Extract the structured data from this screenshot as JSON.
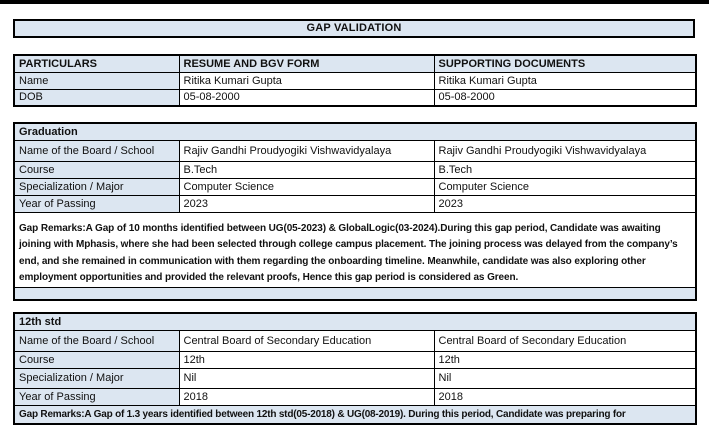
{
  "page": {
    "title": "GAP VALIDATION"
  },
  "colors": {
    "header_fill": "#dce6f1",
    "border": "#000000",
    "top_bar": "#000000"
  },
  "particulars_table": {
    "headers": [
      "PARTICULARS",
      "RESUME AND BGV FORM",
      "SUPPORTING DOCUMENTS"
    ],
    "rows": [
      {
        "label": "Name",
        "resume": "Ritika Kumari Gupta",
        "supporting": "Ritika Kumari Gupta"
      },
      {
        "label": "DOB",
        "resume": "05-08-2000",
        "supporting": "05-08-2000"
      }
    ]
  },
  "graduation": {
    "section_title": "Graduation",
    "rows": [
      {
        "label": "Name of the Board / School",
        "resume": "Rajiv Gandhi Proudyogiki Vishwavidyalaya",
        "supporting": "Rajiv Gandhi Proudyogiki Vishwavidyalaya"
      },
      {
        "label": "Course",
        "resume": "B.Tech",
        "supporting": "B.Tech"
      },
      {
        "label": "Specialization / Major",
        "resume": "Computer Science",
        "supporting": "Computer Science"
      },
      {
        "label": "Year of Passing",
        "resume": "2023",
        "supporting": "2023"
      }
    ],
    "gap_remarks": "Gap Remarks:A Gap of 10 months identified between UG(05-2023) & GlobalLogic(03-2024).During this gap period, Candidate was awaiting joining with Mphasis, where she had been selected through college campus placement. The joining process was delayed from the company’s end, and she remained in communication with them regarding the onboarding timeline. Meanwhile, candidate was also exploring other employment opportunities and provided the relevant proofs, Hence this gap period is considered as Green."
  },
  "twelfth": {
    "section_title": "12th std",
    "rows": [
      {
        "label": "Name of the Board / School",
        "resume": "Central Board of Secondary Education",
        "supporting": "Central Board of Secondary Education"
      },
      {
        "label": "Course",
        "resume": "12th",
        "supporting": "12th"
      },
      {
        "label": "Specialization / Major",
        "resume": "Nil",
        "supporting": "Nil"
      },
      {
        "label": "Year of Passing",
        "resume": "2018",
        "supporting": "2018"
      }
    ],
    "gap_remarks": "Gap Remarks:A Gap of 1.3 years identified between 12th std(05-2018) & UG(08-2019). During this period, Candidate was preparing for"
  }
}
